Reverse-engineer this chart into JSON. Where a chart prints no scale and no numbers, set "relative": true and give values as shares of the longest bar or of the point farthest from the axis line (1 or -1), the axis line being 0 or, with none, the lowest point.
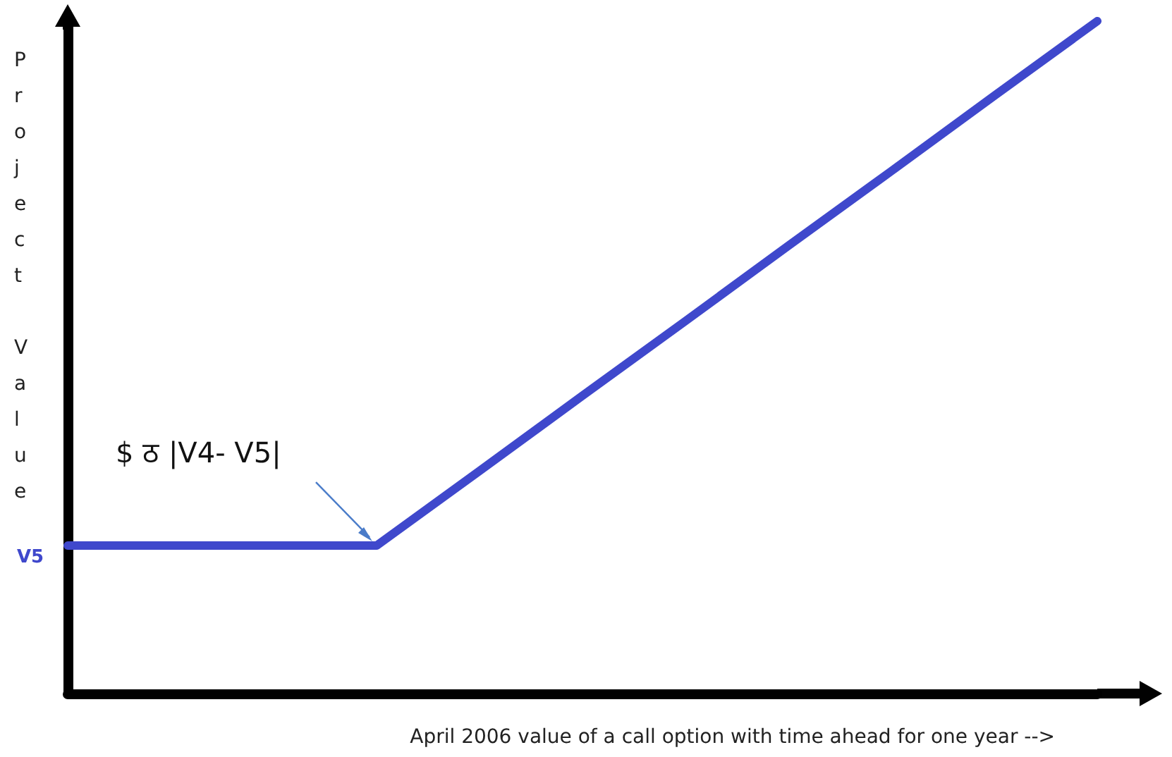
{
  "chart_data": {
    "type": "line",
    "relative": true,
    "xlabel": "April 2006 value of a call option with time ahead for one year -->",
    "ylabel": "Project Value",
    "categories": [
      null,
      null,
      null,
      null,
      null,
      null,
      null,
      null,
      null,
      null,
      null
    ],
    "series": [
      {
        "color": "#3f48cc",
        "values": [
          0.22,
          0.22,
          0.22,
          0.22,
          0.331,
          0.443,
          0.554,
          0.666,
          0.777,
          0.889,
          1
        ]
      }
    ],
    "annotations": [
      "$ ठ |V4- V5|",
      "V5"
    ],
    "marker": "none"
  }
}
